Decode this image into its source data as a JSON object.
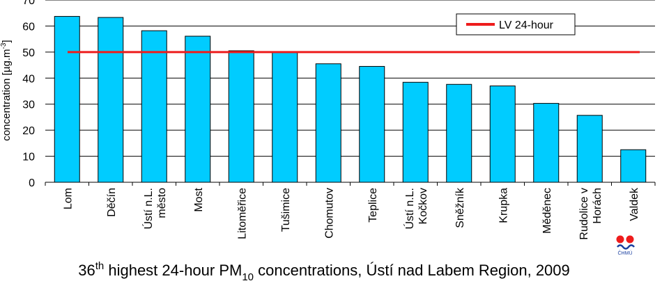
{
  "chart_data": {
    "type": "bar",
    "title": {
      "pre": "36",
      "sup": "th",
      "mid": " highest 24-hour PM",
      "sub": "10",
      "post": " concentrations, Ústí nad Labem Region, 2009"
    },
    "ylabel": {
      "main": "concentration [µg.m",
      "sup": "-3",
      "end": "]"
    },
    "xlabel": "",
    "ylim": [
      0,
      70
    ],
    "yticks": [
      "0",
      "10",
      "20",
      "30",
      "40",
      "50",
      "60",
      "70"
    ],
    "grid": true,
    "legend_position": "top-right",
    "categories": [
      [
        "Lom"
      ],
      [
        "Děčín"
      ],
      [
        "Ústí n.L.",
        "město"
      ],
      [
        "Most"
      ],
      [
        "Litoměřice"
      ],
      [
        "Tušimice"
      ],
      [
        "Chomutov"
      ],
      [
        "Teplice"
      ],
      [
        "Ústí n.L.",
        "Kočkov"
      ],
      [
        "Sněžník"
      ],
      [
        "Krupka"
      ],
      [
        "Měděnec"
      ],
      [
        "Rudolice v",
        "Horách"
      ],
      [
        "Valdek"
      ]
    ],
    "values": [
      63.7,
      63.3,
      58.2,
      56.1,
      50.5,
      50.0,
      45.5,
      44.5,
      38.4,
      37.6,
      37.0,
      30.3,
      25.7,
      12.5
    ],
    "limit": {
      "name": "LV 24-hour",
      "value": 50,
      "color": "#ee1c1c"
    },
    "bar_color": "#00ccff",
    "bar_stroke": "#000000"
  },
  "logo": {
    "text": "ČHMÚ",
    "color_dots": "#ee1c1c",
    "color_text": "#1a3fa0"
  }
}
